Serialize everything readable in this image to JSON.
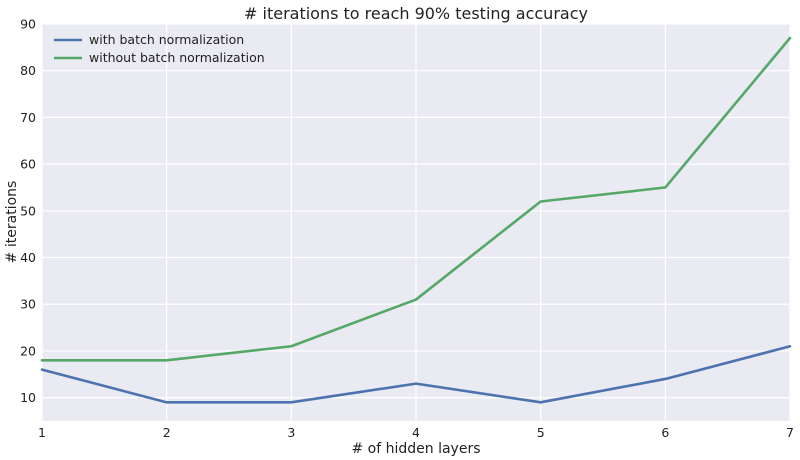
{
  "chart_data": {
    "type": "line",
    "title": "# iterations to reach 90% testing accuracy",
    "xlabel": "# of hidden layers",
    "ylabel": "# iterations",
    "x": [
      1,
      2,
      3,
      4,
      5,
      6,
      7
    ],
    "xlim": [
      1,
      7
    ],
    "ylim": [
      5,
      90
    ],
    "xticks": [
      1,
      2,
      3,
      4,
      5,
      6,
      7
    ],
    "yticks": [
      10,
      20,
      30,
      40,
      50,
      60,
      70,
      80,
      90
    ],
    "grid": true,
    "legend_position": "top-left",
    "background_color": "#EAEAF2",
    "series": [
      {
        "name": "with batch normalization",
        "color": "#4C72B0",
        "values": [
          16,
          9,
          9,
          13,
          9,
          14,
          21
        ]
      },
      {
        "name": "without batch normalization",
        "color": "#55A868",
        "values": [
          18,
          18,
          21,
          31,
          52,
          55,
          87
        ]
      }
    ]
  }
}
